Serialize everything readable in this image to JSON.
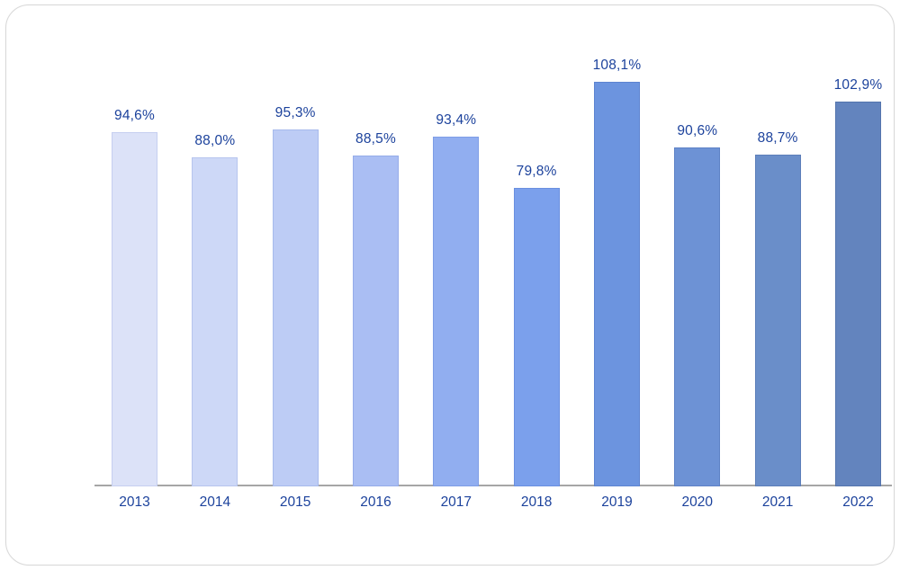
{
  "chart_data": {
    "type": "bar",
    "title": "",
    "xlabel": "",
    "ylabel": "",
    "categories": [
      "2013",
      "2014",
      "2015",
      "2016",
      "2017",
      "2018",
      "2019",
      "2020",
      "2021",
      "2022"
    ],
    "values": [
      94.6,
      88.0,
      95.3,
      88.5,
      93.4,
      79.8,
      108.1,
      90.6,
      88.7,
      102.9
    ],
    "value_labels": [
      "94,6%",
      "88,0%",
      "95,3%",
      "88,5%",
      "93,4%",
      "79,8%",
      "108,1%",
      "90,6%",
      "88,7%",
      "102,9%"
    ],
    "bar_colors": [
      "#DCE2F8",
      "#CDD8F7",
      "#BDCCF5",
      "#AABEF3",
      "#91AEF0",
      "#7BA0EC",
      "#6C94DF",
      "#6D92D5",
      "#6A8EC9",
      "#6384BE"
    ],
    "bar_border_colors": [
      "#C6CFF0",
      "#B7C5EE",
      "#A7BAEC",
      "#95ACE9",
      "#7E9DE6",
      "#6A90E0",
      "#5D84D1",
      "#5E82C6",
      "#5C7EB9",
      "#5474AD"
    ],
    "ylim": [
      0,
      112
    ],
    "grid": false,
    "legend": false,
    "label_color": "#1C429C",
    "axis_line_color": "#A6A6A6",
    "decimal_separator": ","
  },
  "card": {
    "background": "#FFFFFF",
    "border_color": "#D8D8D8"
  }
}
